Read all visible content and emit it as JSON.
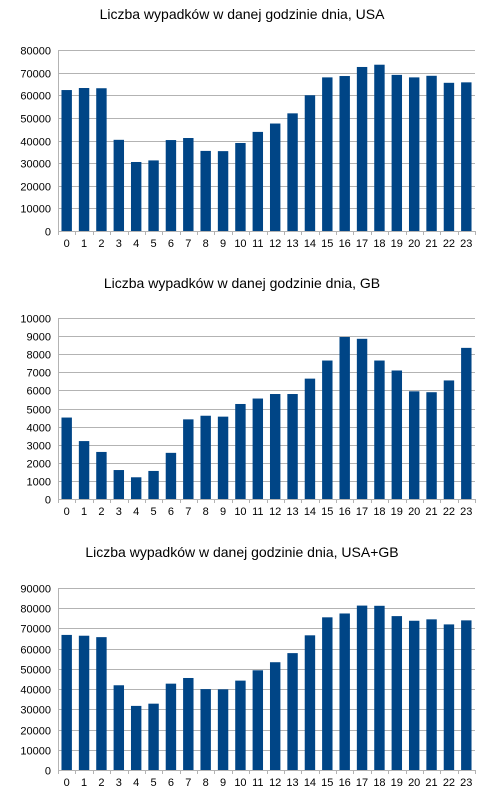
{
  "chart_data": [
    {
      "type": "bar",
      "title": "Liczba wypadków w danej godzinie dnia, USA",
      "categories": [
        "0",
        "1",
        "2",
        "3",
        "4",
        "5",
        "6",
        "7",
        "8",
        "9",
        "10",
        "11",
        "12",
        "13",
        "14",
        "15",
        "16",
        "17",
        "18",
        "19",
        "20",
        "21",
        "22",
        "23"
      ],
      "values": [
        62300,
        63200,
        63100,
        40300,
        30500,
        31200,
        40200,
        41100,
        35400,
        35300,
        38900,
        43800,
        47500,
        52000,
        60000,
        67900,
        68500,
        72500,
        73500,
        69000,
        67900,
        68600,
        65500,
        65700
      ],
      "yticks": [
        "0",
        "10000",
        "20000",
        "30000",
        "40000",
        "50000",
        "60000",
        "70000",
        "80000"
      ],
      "ylim": [
        0,
        80000
      ],
      "grid": true,
      "color": "#004586"
    },
    {
      "type": "bar",
      "title": "Liczba wypadków w danej godzinie dnia, GB",
      "categories": [
        "0",
        "1",
        "2",
        "3",
        "4",
        "5",
        "6",
        "7",
        "8",
        "9",
        "10",
        "11",
        "12",
        "13",
        "14",
        "15",
        "16",
        "17",
        "18",
        "19",
        "20",
        "21",
        "22",
        "23"
      ],
      "values": [
        4500,
        3200,
        2600,
        1600,
        1200,
        1550,
        2550,
        4400,
        4600,
        4550,
        5250,
        5550,
        5800,
        5800,
        6650,
        7650,
        8950,
        8850,
        7650,
        7100,
        5950,
        5900,
        6550,
        8350
      ],
      "yticks": [
        "0",
        "1000",
        "2000",
        "3000",
        "4000",
        "5000",
        "6000",
        "7000",
        "8000",
        "9000",
        "10000"
      ],
      "ylim": [
        0,
        10000
      ],
      "grid": true,
      "color": "#004586"
    },
    {
      "type": "bar",
      "title": "Liczba wypadków w danej godzinie dnia, USA+GB",
      "categories": [
        "0",
        "1",
        "2",
        "3",
        "4",
        "5",
        "6",
        "7",
        "8",
        "9",
        "10",
        "11",
        "12",
        "13",
        "14",
        "15",
        "16",
        "17",
        "18",
        "19",
        "20",
        "21",
        "22",
        "23"
      ],
      "values": [
        66800,
        66400,
        65700,
        41900,
        31700,
        32800,
        42700,
        45500,
        40000,
        39900,
        44200,
        49300,
        53300,
        57800,
        66600,
        75500,
        77400,
        81300,
        81200,
        76100,
        73800,
        74500,
        72000,
        74000
      ],
      "yticks": [
        "0",
        "10000",
        "20000",
        "30000",
        "40000",
        "50000",
        "60000",
        "70000",
        "80000",
        "90000"
      ],
      "ylim": [
        0,
        90000
      ],
      "grid": true,
      "color": "#004586"
    }
  ]
}
